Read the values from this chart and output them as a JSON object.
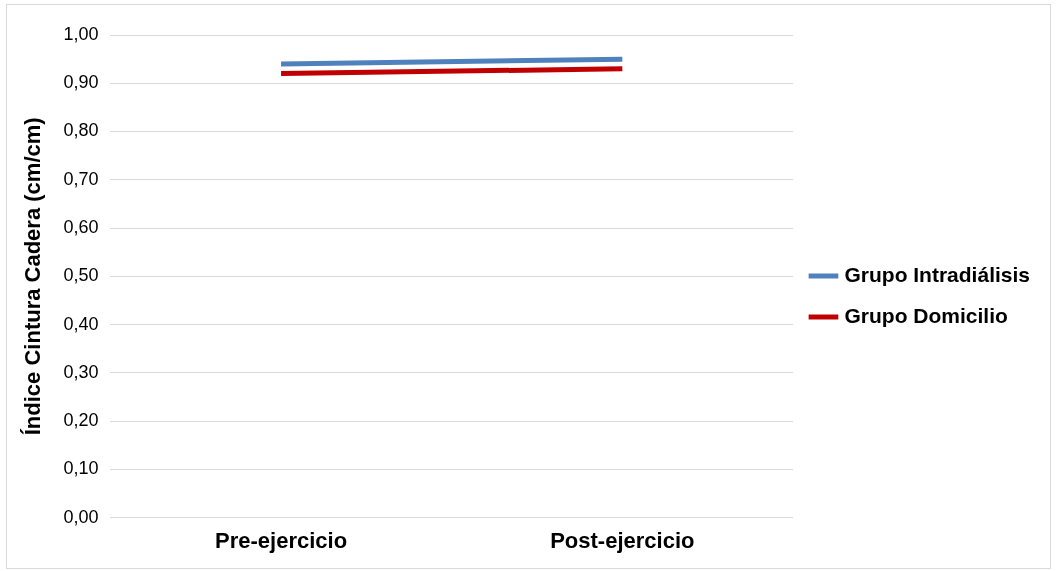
{
  "chart_data": {
    "type": "line",
    "ylabel": "Índice Cintura Cadera (cm/cm)",
    "categories": [
      "Pre-ejercicio",
      "Post-ejercicio"
    ],
    "series": [
      {
        "name": "Grupo Intradiálisis",
        "color": "#4f81bd",
        "values": [
          0.94,
          0.95
        ]
      },
      {
        "name": "Grupo Domicilio",
        "color": "#c00000",
        "values": [
          0.92,
          0.93
        ]
      }
    ],
    "ylim": [
      0,
      1
    ],
    "yticks": [
      {
        "value": 0,
        "label": "0,00"
      },
      {
        "value": 0.1,
        "label": "0,10"
      },
      {
        "value": 0.2,
        "label": "0,20"
      },
      {
        "value": 0.3,
        "label": "0,30"
      },
      {
        "value": 0.4,
        "label": "0,40"
      },
      {
        "value": 0.5,
        "label": "0,50"
      },
      {
        "value": 0.6,
        "label": "0,60"
      },
      {
        "value": 0.7,
        "label": "0,70"
      },
      {
        "value": 0.8,
        "label": "0,80"
      },
      {
        "value": 0.9,
        "label": "0,90"
      },
      {
        "value": 1,
        "label": "1,00"
      }
    ],
    "grid": "y",
    "legend": "right",
    "marker": "none",
    "line_style": "solid"
  }
}
